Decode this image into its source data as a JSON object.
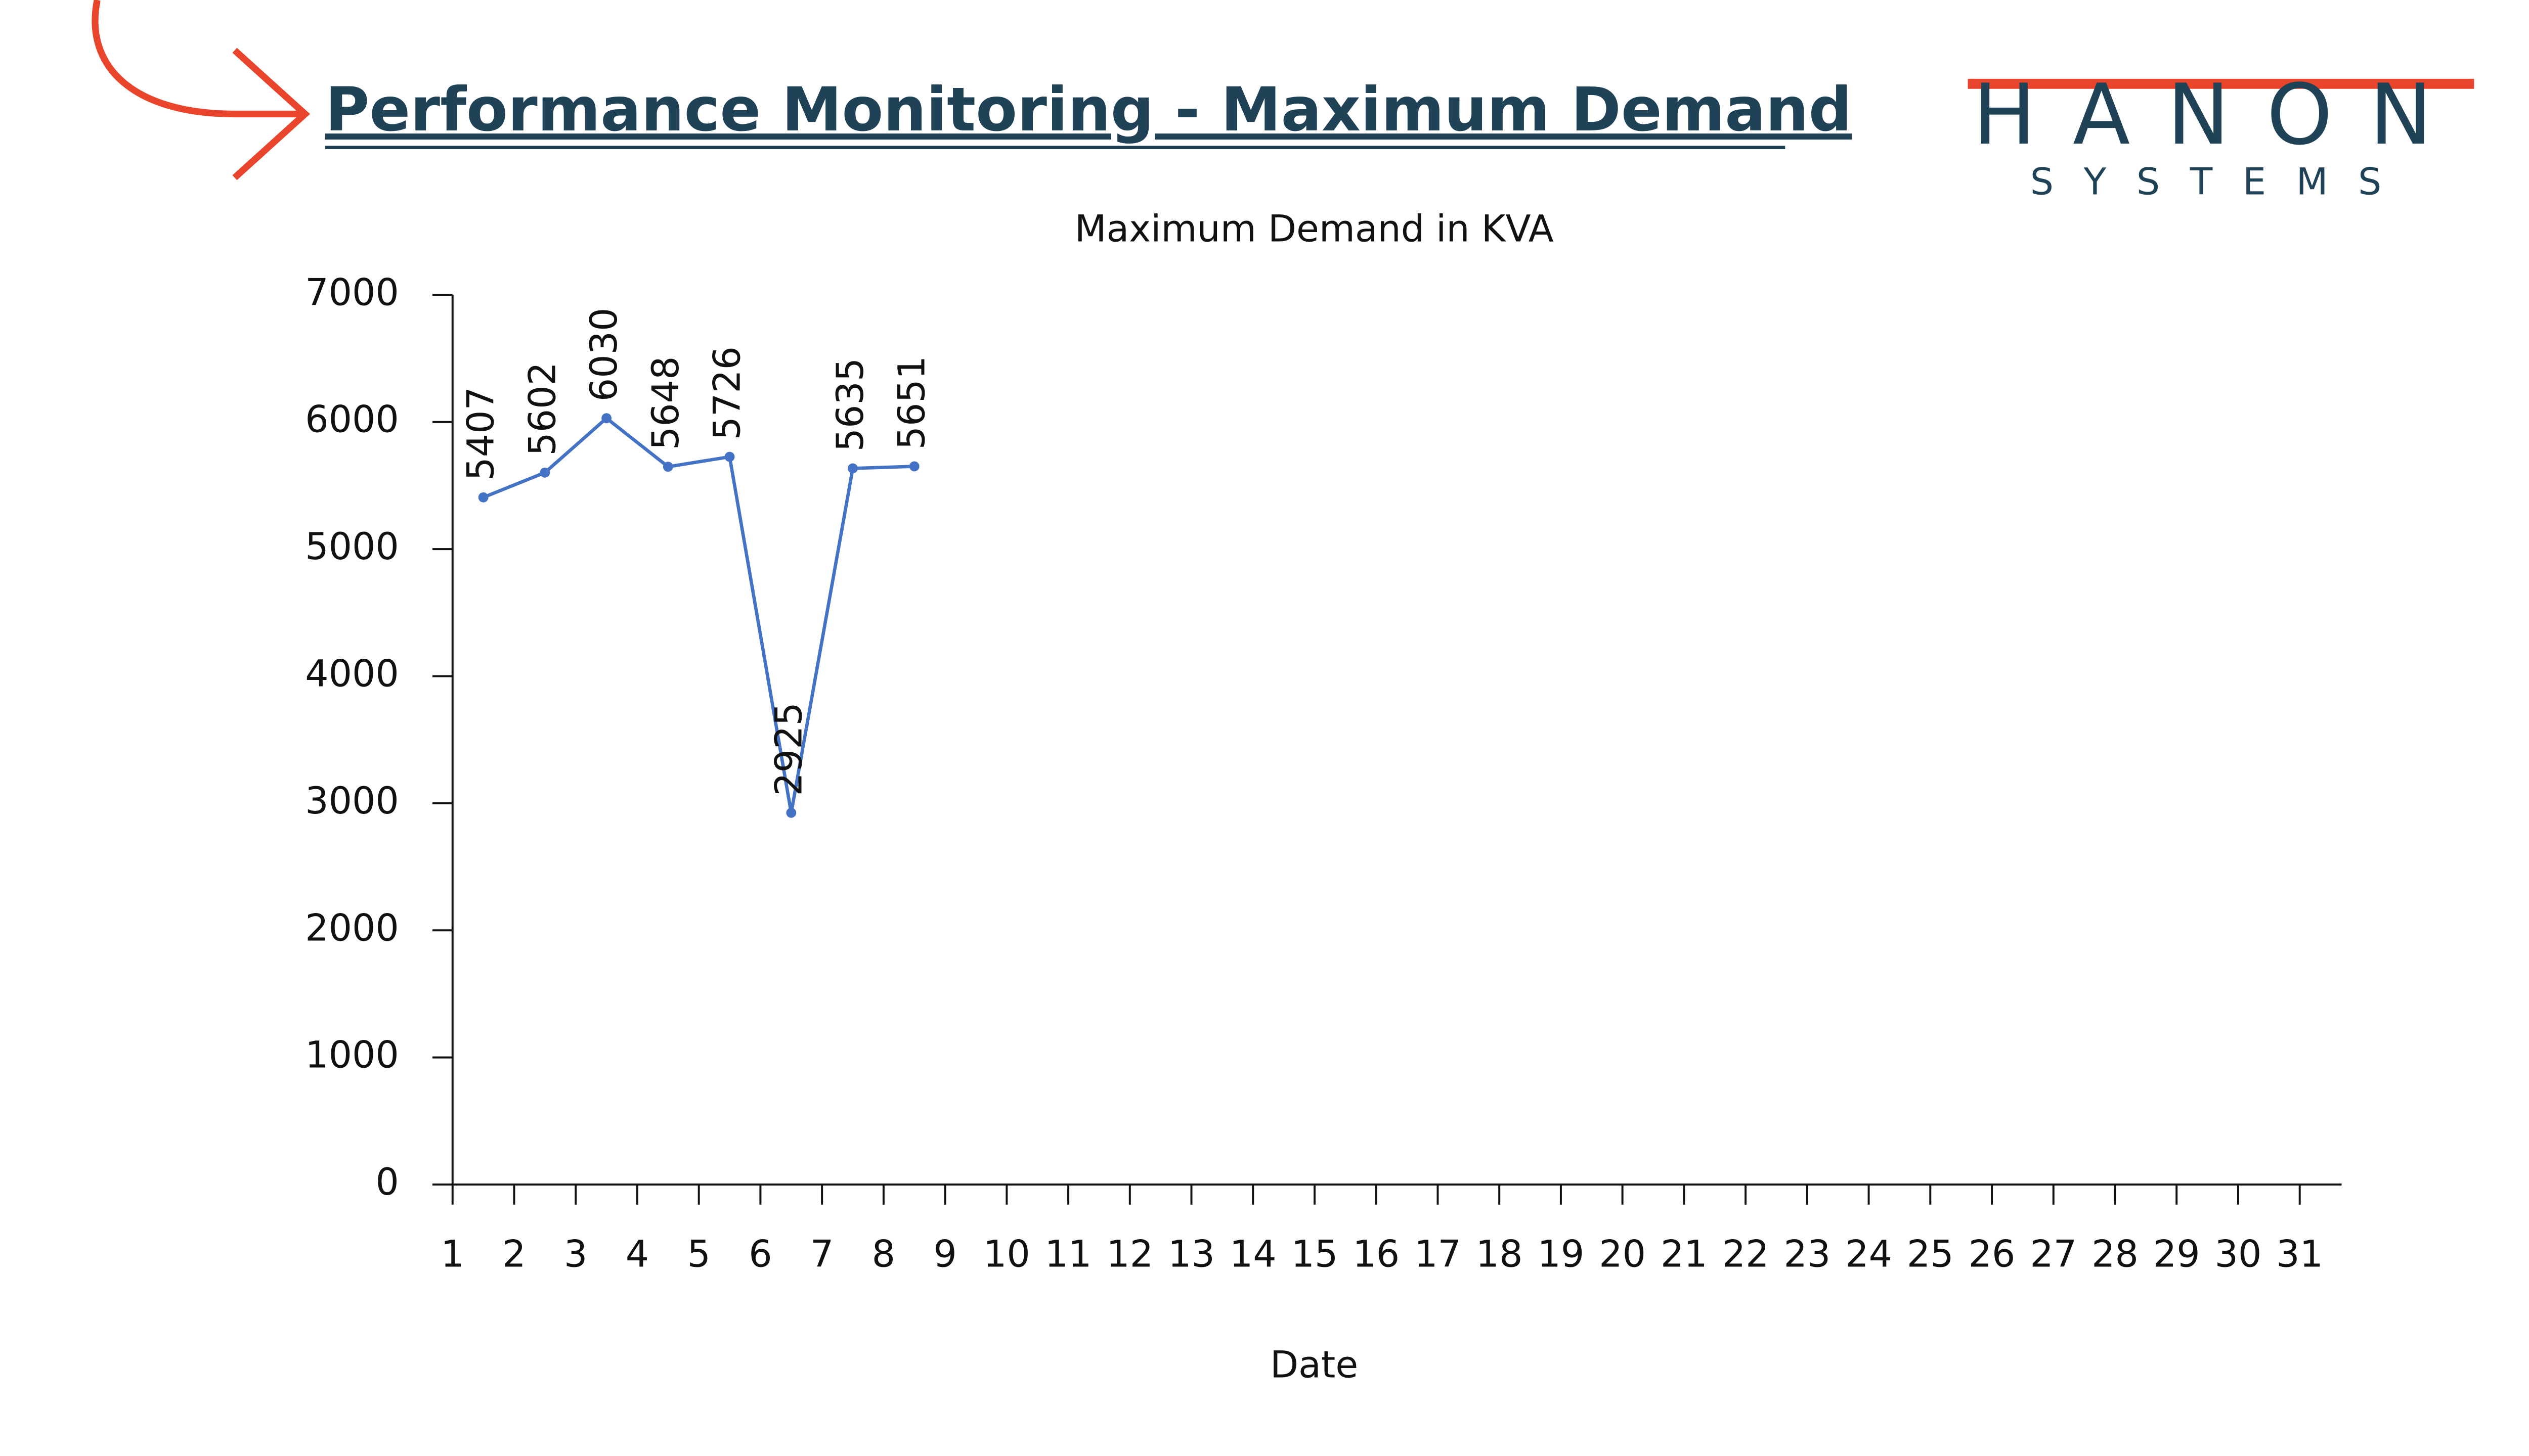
{
  "header": {
    "title": "Performance Monitoring - Maximum Demand"
  },
  "logo": {
    "name": "HANON",
    "tagline": "SYSTEMS"
  },
  "chart_data": {
    "type": "line",
    "title": "Maximum Demand in KVA",
    "x_label": "Date",
    "categories": [
      "1",
      "2",
      "3",
      "4",
      "5",
      "6",
      "7",
      "8",
      "9",
      "10",
      "11",
      "12",
      "13",
      "14",
      "15",
      "16",
      "17",
      "18",
      "19",
      "20",
      "21",
      "22",
      "23",
      "24",
      "25",
      "26",
      "27",
      "28",
      "29",
      "30",
      "31"
    ],
    "series": [
      {
        "name": "Maximum Demand",
        "color": "#4472c4",
        "values": [
          5407,
          5602,
          6030,
          5648,
          5726,
          2925,
          5635,
          5651,
          null,
          null,
          null,
          null,
          null,
          null,
          null,
          null,
          null,
          null,
          null,
          null,
          null,
          null,
          null,
          null,
          null,
          null,
          null,
          null,
          null,
          null,
          null
        ]
      }
    ],
    "ylim": [
      0,
      7000
    ],
    "yticks": [
      0,
      1000,
      2000,
      3000,
      4000,
      5000,
      6000,
      7000
    ]
  }
}
